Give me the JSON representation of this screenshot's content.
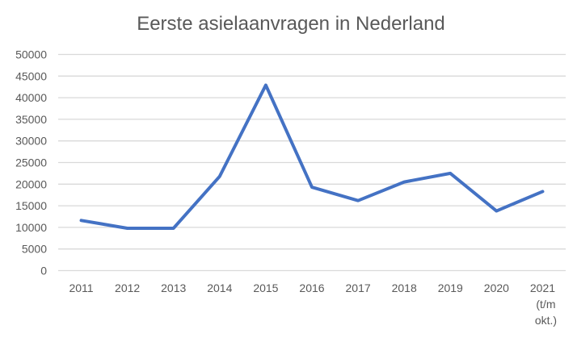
{
  "chart_data": {
    "type": "line",
    "title": "Eerste asielaanvragen in Nederland",
    "xlabel": "",
    "ylabel": "",
    "categories": [
      "2011",
      "2012",
      "2013",
      "2014",
      "2015",
      "2016",
      "2017",
      "2018",
      "2019",
      "2020",
      "2021 (t/m okt.)"
    ],
    "category_lines": [
      [
        "2011"
      ],
      [
        "2012"
      ],
      [
        "2013"
      ],
      [
        "2014"
      ],
      [
        "2015"
      ],
      [
        "2016"
      ],
      [
        "2017"
      ],
      [
        "2018"
      ],
      [
        "2019"
      ],
      [
        "2020"
      ],
      [
        "2021",
        "(t/m",
        "okt.)"
      ]
    ],
    "series": [
      {
        "values": [
          11600,
          9800,
          9800,
          21800,
          42900,
          19300,
          16200,
          20500,
          22500,
          13800,
          18300
        ],
        "color": "#4472C4"
      }
    ],
    "ylim": [
      0,
      50000
    ],
    "yticks": [
      0,
      5000,
      10000,
      15000,
      20000,
      25000,
      30000,
      35000,
      40000,
      45000,
      50000
    ],
    "grid": true,
    "legend": "none"
  }
}
